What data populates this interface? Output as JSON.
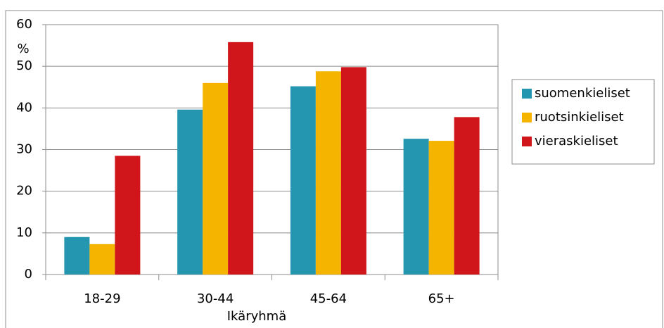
{
  "chart_data": {
    "type": "bar",
    "y_label": "%",
    "x_label": "Ikäryhmä",
    "categories": [
      "18-29",
      "30-44",
      "45-64",
      "65+"
    ],
    "series": [
      {
        "name": "suomenkieliset",
        "color": "#2596b0",
        "values": [
          9,
          39.6,
          45.2,
          32.6
        ]
      },
      {
        "name": "ruotsinkieliset",
        "color": "#f4b400",
        "values": [
          7.3,
          46,
          48.8,
          32.1
        ]
      },
      {
        "name": "vieraskieliset",
        "color": "#d0161b",
        "values": [
          28.5,
          55.8,
          49.8,
          37.8
        ]
      }
    ],
    "ylim": [
      0,
      60
    ],
    "yticks": [
      0,
      10,
      20,
      30,
      40,
      50,
      60
    ],
    "grid": true,
    "legend": "right"
  }
}
